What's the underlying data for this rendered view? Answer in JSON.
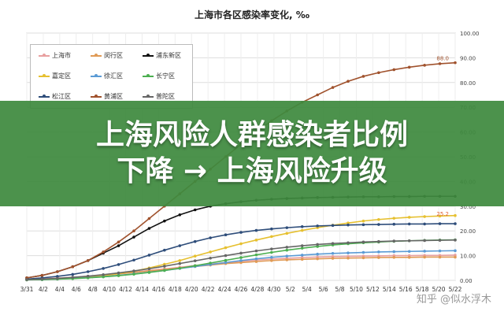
{
  "chart_data": {
    "type": "line",
    "title": "上海市各区感染率变化, ‰",
    "x_ticks": [
      "3/31",
      "4/2",
      "4/4",
      "4/6",
      "4/8",
      "4/10",
      "4/12",
      "4/14",
      "4/16",
      "4/18",
      "4/20",
      "4/22",
      "4/24",
      "4/26",
      "4/28",
      "4/30",
      "5/2",
      "5/4",
      "5/6",
      "5/8",
      "5/10",
      "5/12",
      "5/14",
      "5/16",
      "5/18",
      "5/20",
      "5/22"
    ],
    "y_right_ticks": [
      "0.00",
      "10.00",
      "20.00",
      "30.00",
      "40.00",
      "50.00",
      "60.00",
      "70.00",
      "80.00",
      "90.00",
      "100.00"
    ],
    "ylim": [
      0,
      100
    ],
    "grid": true,
    "legend_position": "top-left",
    "series": [
      {
        "name": "上海市",
        "color": "#e8a0a0",
        "values": [
          0.4,
          0.6,
          0.9,
          1.2,
          1.6,
          2.1,
          2.7,
          3.3,
          4,
          4.6,
          5.3,
          6,
          6.6,
          7.2,
          7.7,
          8.2,
          8.6,
          8.9,
          9.2,
          9.4,
          9.6,
          9.7,
          9.8,
          9.9,
          10,
          10,
          10.1,
          10.1,
          10.2
        ]
      },
      {
        "name": "闵行区",
        "color": "#e09a55",
        "values": [
          0.3,
          0.5,
          0.8,
          1.1,
          1.5,
          2,
          2.6,
          3.2,
          3.8,
          4.4,
          5,
          5.6,
          6.2,
          6.8,
          7.2,
          7.6,
          8,
          8.3,
          8.5,
          8.7,
          8.9,
          9,
          9.1,
          9.2,
          9.3,
          9.3,
          9.4,
          9.4,
          9.4
        ]
      },
      {
        "name": "浦东新区",
        "color": "#111111",
        "values": [
          1,
          2,
          3.5,
          5.5,
          8,
          11,
          14,
          17.5,
          21,
          24,
          26.5,
          28.5,
          30,
          31,
          31.8,
          32.4,
          32.8,
          33.1,
          33.3,
          33.5,
          33.6,
          33.7,
          33.8,
          33.8,
          33.9,
          33.9,
          34,
          34,
          34
        ]
      },
      {
        "name": "嘉定区",
        "color": "#e6c030",
        "values": [
          0.2,
          0.4,
          0.6,
          0.9,
          1.3,
          1.9,
          2.7,
          3.7,
          5,
          6.5,
          8,
          9.8,
          11.5,
          13.2,
          14.8,
          16.3,
          17.7,
          19,
          20.2,
          21.3,
          22.3,
          23.2,
          24,
          24.6,
          25.1,
          25.5,
          25.8,
          26,
          26.2
        ]
      },
      {
        "name": "徐汇区",
        "color": "#5b9bd5",
        "values": [
          0.2,
          0.3,
          0.5,
          0.8,
          1.1,
          1.5,
          2,
          2.6,
          3.3,
          4,
          4.8,
          5.6,
          6.4,
          7.2,
          8,
          8.7,
          9.3,
          9.8,
          10.2,
          10.6,
          10.9,
          11.1,
          11.3,
          11.5,
          11.6,
          11.7,
          11.8,
          11.9,
          12
        ]
      },
      {
        "name": "长宁区",
        "color": "#4caf50",
        "values": [
          0.2,
          0.3,
          0.5,
          0.7,
          1,
          1.4,
          1.9,
          2.5,
          3.2,
          4,
          4.9,
          5.9,
          7,
          8.1,
          9.2,
          10.3,
          11.3,
          12.2,
          13,
          13.7,
          14.3,
          14.8,
          15.2,
          15.5,
          15.8,
          16,
          16.2,
          16.3,
          16.4
        ]
      },
      {
        "name": "松江区",
        "color": "#2e4d7a",
        "values": [
          0.5,
          1,
          1.6,
          2.4,
          3.5,
          4.8,
          6.4,
          8.2,
          10.2,
          12.2,
          14,
          15.7,
          17.2,
          18.4,
          19.4,
          20.2,
          20.8,
          21.3,
          21.7,
          22,
          22.2,
          22.4,
          22.5,
          22.6,
          22.7,
          22.8,
          22.8,
          22.9,
          22.9
        ]
      },
      {
        "name": "黄浦区",
        "color": "#a0522d",
        "values": [
          1,
          2,
          3.5,
          5.5,
          8,
          11.5,
          15.5,
          20,
          25,
          30,
          35,
          40,
          45,
          50,
          55,
          60,
          64.5,
          68.5,
          72,
          75,
          78,
          80.5,
          82.5,
          84,
          85.2,
          86.2,
          87,
          87.6,
          88
        ]
      },
      {
        "name": "普陀区",
        "color": "#666666",
        "values": [
          0.3,
          0.5,
          0.8,
          1.2,
          1.7,
          2.3,
          3,
          3.8,
          4.7,
          5.7,
          6.8,
          7.9,
          9,
          10,
          11,
          11.9,
          12.7,
          13.4,
          14,
          14.5,
          14.9,
          15.2,
          15.5,
          15.7,
          15.9,
          16,
          16.1,
          16.2,
          16.3
        ]
      }
    ],
    "end_labels": [
      {
        "text": "88.0",
        "color": "#a0522d",
        "value": 88
      },
      {
        "text": "25.2",
        "color": "#e06030",
        "value": 25.2
      }
    ]
  },
  "banner": {
    "line1": "上海风险人群感染者比例",
    "line2": "下降 → 上海风险升级"
  },
  "watermark": "知乎 @似水浮木"
}
